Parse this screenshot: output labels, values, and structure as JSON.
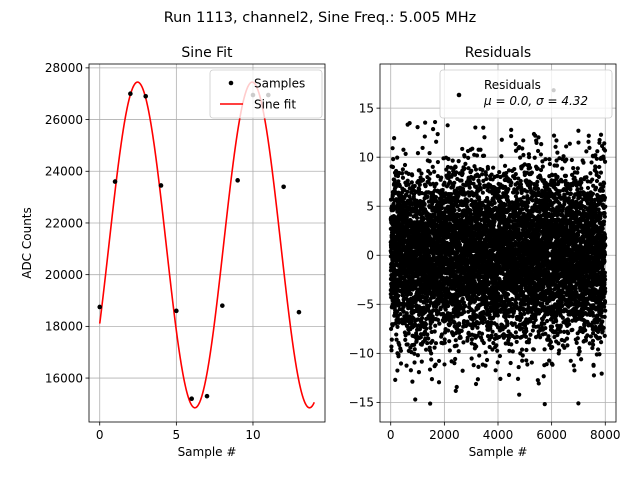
{
  "figure": {
    "suptitle": "Run 1113, channel2, Sine Freq.: 5.005 MHz"
  },
  "chart_data": [
    {
      "type": "line",
      "title": "Sine Fit",
      "xlabel": "Sample #",
      "ylabel": "ADC Counts",
      "xlim": [
        -0.7,
        14.7
      ],
      "ylim": [
        14300,
        28150
      ],
      "xticks": [
        0,
        5,
        10
      ],
      "yticks": [
        16000,
        18000,
        20000,
        22000,
        24000,
        26000,
        28000
      ],
      "tick_labels_x": [
        "0",
        "5",
        "10"
      ],
      "tick_labels_y": [
        "16000",
        "18000",
        "20000",
        "22000",
        "24000",
        "26000",
        "28000"
      ],
      "grid": true,
      "legend_position": "top-right",
      "series": [
        {
          "name": "Samples",
          "kind": "scatter",
          "color": "#000000",
          "x": [
            0,
            1,
            2,
            3,
            4,
            5,
            6,
            7,
            8,
            9,
            10,
            11,
            12,
            13
          ],
          "y": [
            18750,
            23600,
            27000,
            26900,
            23450,
            18600,
            15200,
            15300,
            18800,
            23650,
            26950,
            26950,
            23400,
            18550
          ]
        },
        {
          "name": "Sine fit",
          "kind": "line",
          "color": "#ff0000",
          "fit": {
            "offset": 21150,
            "amplitude": 6300,
            "period": 7.48,
            "zero_crossing": 0.6,
            "x_range": [
              0,
              14
            ]
          }
        }
      ]
    },
    {
      "type": "scatter",
      "title": "Residuals",
      "xlabel": "Sample #",
      "ylabel": "",
      "xlim": [
        -400,
        8400
      ],
      "ylim": [
        -17,
        19.5
      ],
      "xticks": [
        0,
        2000,
        4000,
        6000,
        8000
      ],
      "yticks": [
        -15,
        -10,
        -5,
        0,
        5,
        10,
        15
      ],
      "tick_labels_x": [
        "0",
        "2000",
        "4000",
        "6000",
        "8000"
      ],
      "tick_labels_y": [
        "−15",
        "−10",
        "−5",
        "0",
        "5",
        "10",
        "15"
      ],
      "grid": true,
      "legend_position": "top-right",
      "series": [
        {
          "name": "Residuals",
          "name_line2": "μ = 0.0, σ = 4.32",
          "color": "#000000",
          "stats": {
            "mean": 0.0,
            "sigma": 4.32,
            "n_points": 8000,
            "x_range": [
              0,
              8000
            ]
          }
        }
      ]
    }
  ]
}
